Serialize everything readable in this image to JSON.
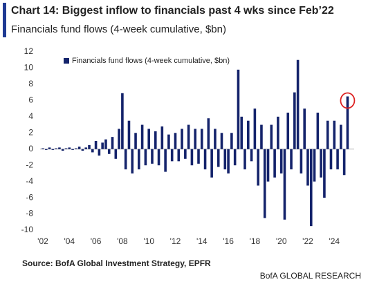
{
  "chart_data": {
    "type": "bar",
    "title": "Chart 14: Biggest inflow to financials past 4 wks since Feb’22",
    "subtitle": "Financials fund flows (4-week cumulative, $bn)",
    "source": "Source: BofA Global Investment Strategy, EPFR",
    "brand": "BofA GLOBAL RESEARCH",
    "x": [
      2002,
      2002.25,
      2002.5,
      2002.75,
      2003,
      2003.25,
      2003.5,
      2003.75,
      2004,
      2004.25,
      2004.5,
      2004.75,
      2005,
      2005.25,
      2005.5,
      2005.75,
      2006,
      2006.25,
      2006.5,
      2006.75,
      2007,
      2007.25,
      2007.5,
      2007.75,
      2008,
      2008.25,
      2008.5,
      2008.75,
      2009,
      2009.25,
      2009.5,
      2009.75,
      2010,
      2010.25,
      2010.5,
      2010.75,
      2011,
      2011.25,
      2011.5,
      2011.75,
      2012,
      2012.25,
      2012.5,
      2012.75,
      2013,
      2013.25,
      2013.5,
      2013.75,
      2014,
      2014.25,
      2014.5,
      2014.75,
      2015,
      2015.25,
      2015.5,
      2015.75,
      2016,
      2016.25,
      2016.5,
      2016.75,
      2017,
      2017.25,
      2017.5,
      2017.75,
      2018,
      2018.25,
      2018.5,
      2018.75,
      2019,
      2019.25,
      2019.5,
      2019.75,
      2020,
      2020.25,
      2020.5,
      2020.75,
      2021,
      2021.25,
      2021.5,
      2021.75,
      2022,
      2022.25,
      2022.5,
      2022.75,
      2023,
      2023.25,
      2023.5,
      2023.75,
      2024,
      2024.25,
      2024.5,
      2024.75,
      2025
    ],
    "series": [
      {
        "name": "Financials fund flows (4-week cumulative, $bn)",
        "color": "#14236b",
        "values": [
          0.1,
          -0.1,
          0.2,
          -0.1,
          0.1,
          0.2,
          -0.2,
          0.1,
          0.2,
          -0.1,
          0.1,
          0.3,
          -0.2,
          0.2,
          0.5,
          -0.4,
          1.0,
          -0.8,
          0.8,
          1.2,
          -0.6,
          1.5,
          -1.2,
          2.5,
          6.9,
          -2.5,
          3.5,
          -3.0,
          2.0,
          -2.5,
          3.0,
          -2.0,
          2.5,
          -1.8,
          2.2,
          -2.0,
          2.8,
          -2.8,
          1.8,
          -1.5,
          2.0,
          -1.5,
          2.5,
          -1.2,
          3.0,
          -2.0,
          2.5,
          -1.8,
          2.5,
          -2.5,
          3.8,
          -3.5,
          2.5,
          -2.2,
          2.0,
          -2.5,
          -3.0,
          2.0,
          -2.0,
          9.8,
          4.0,
          -2.5,
          3.5,
          -1.5,
          5.0,
          -4.5,
          3.0,
          -8.5,
          -4.0,
          3.0,
          -3.5,
          4.0,
          -3.0,
          -8.7,
          4.5,
          -2.5,
          7.0,
          11.0,
          -3.0,
          5.0,
          -4.5,
          -9.5,
          -4.0,
          4.5,
          -3.5,
          -6.0,
          3.5,
          -2.5,
          3.5,
          -2.5,
          3.0,
          -3.2,
          6.5
        ]
      }
    ],
    "xlim": [
      2002,
      2025.5
    ],
    "xticks": [
      {
        "value": 2002,
        "label": "'02"
      },
      {
        "value": 2004,
        "label": "'04"
      },
      {
        "value": 2006,
        "label": "'06"
      },
      {
        "value": 2008,
        "label": "'08"
      },
      {
        "value": 2010,
        "label": "'10"
      },
      {
        "value": 2012,
        "label": "'12"
      },
      {
        "value": 2014,
        "label": "'14"
      },
      {
        "value": 2016,
        "label": "'16"
      },
      {
        "value": 2018,
        "label": "'18"
      },
      {
        "value": 2020,
        "label": "'20"
      },
      {
        "value": 2022,
        "label": "'22"
      },
      {
        "value": 2024,
        "label": "'24"
      }
    ],
    "ylim": [
      -10,
      12
    ],
    "yticks": [
      -10,
      -8,
      -6,
      -4,
      -2,
      0,
      2,
      4,
      6,
      8,
      10,
      12
    ],
    "grid": false,
    "legend": "top-left"
  }
}
